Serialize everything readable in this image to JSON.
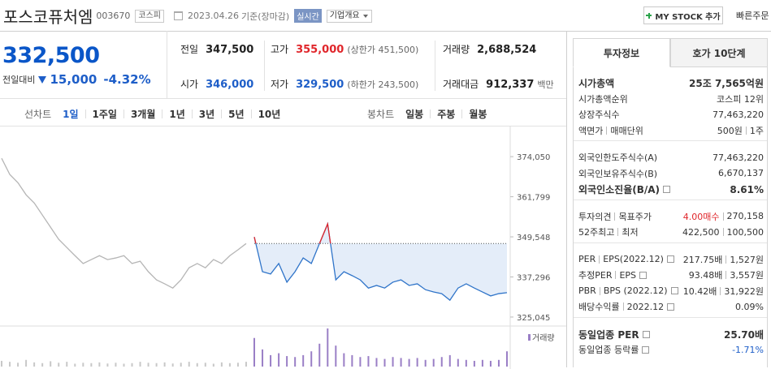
{
  "header": {
    "name": "포스코퓨처엠",
    "code": "003670",
    "market": "코스피",
    "date": "2023.04.26",
    "basis": "기준(장마감)",
    "realtime": "실시간",
    "company": "기업개요",
    "my_stock": "MY STOCK 추가",
    "quick_order": "빠른주문"
  },
  "price": {
    "current": "332,500",
    "change_label": "전일대비",
    "change": "15,000",
    "rate": "-4.32%"
  },
  "stats": [
    [
      {
        "label": "전일",
        "value": "347,500"
      },
      {
        "label": "고가",
        "value": "355,000",
        "note": "(상한가 451,500)",
        "color": "#e0262b"
      },
      {
        "label": "거래량",
        "value": "2,688,524"
      }
    ],
    [
      {
        "label": "시가",
        "value": "346,000",
        "color": "#1e5ec8"
      },
      {
        "label": "저가",
        "value": "329,500",
        "note": "(하한가 243,500)",
        "color": "#1e5ec8"
      },
      {
        "label": "거래대금",
        "value": "912,337",
        "note": "백만"
      }
    ]
  ],
  "chart_tabs": {
    "line_label": "선차트",
    "line": [
      "1일",
      "1주일",
      "3개월",
      "1년",
      "3년",
      "5년",
      "10년"
    ],
    "candle_label": "봉차트",
    "candle": [
      "일봉",
      "주봉",
      "월봉"
    ]
  },
  "chart_data": {
    "type": "line",
    "ylim": [
      322800,
      383500
    ],
    "yticks": [
      {
        "value": 325045,
        "label": "325,045"
      },
      {
        "value": 337296,
        "label": "337,296"
      },
      {
        "value": 349548,
        "label": "349,548"
      },
      {
        "value": 361799,
        "label": "361,799"
      },
      {
        "value": 374050,
        "label": "374,050"
      }
    ],
    "reference": 347500,
    "fill": "#e4edf9",
    "series": [
      {
        "color": "#b5b5b5",
        "values": [
          373550,
          368600,
          366100,
          362400,
          359900,
          356200,
          352500,
          348800,
          346300,
          343800,
          341400,
          342600,
          343800,
          342600,
          343100,
          343800,
          341400,
          342100,
          338900,
          336400,
          335200,
          333900,
          336400,
          340100,
          341400,
          340100,
          342600,
          341400,
          343800,
          345600,
          347500,
          null,
          null,
          null,
          null,
          null,
          null,
          null,
          null,
          null,
          null,
          null,
          null,
          null,
          null,
          null,
          null,
          null,
          null,
          null,
          null,
          null,
          null,
          null,
          null,
          null,
          null,
          null,
          null,
          null,
          null,
          null,
          null
        ]
      },
      {
        "color": "#2f74c9",
        "above_color": "#e0262b",
        "values": [
          null,
          null,
          null,
          null,
          null,
          null,
          null,
          null,
          null,
          null,
          null,
          null,
          null,
          null,
          null,
          null,
          null,
          null,
          null,
          null,
          null,
          null,
          null,
          null,
          null,
          null,
          null,
          null,
          null,
          null,
          null,
          349500,
          338900,
          338200,
          341400,
          335700,
          338900,
          343100,
          341400,
          347500,
          353500,
          336400,
          338900,
          337700,
          336400,
          333900,
          334700,
          333900,
          335700,
          336400,
          334700,
          335200,
          333400,
          332700,
          332200,
          330200,
          333900,
          335200,
          333900,
          332700,
          331500,
          332200,
          332500
        ]
      }
    ],
    "volume": {
      "name": "거래량",
      "series": [
        {
          "color": "#c8c8c8",
          "values": [
            30000,
            25000,
            20000,
            35000,
            22000,
            18000,
            28000,
            20000,
            25000,
            15000,
            20000,
            18000,
            22000,
            16000,
            20000,
            15000,
            18000,
            25000,
            20000,
            18000,
            22000,
            16000,
            20000,
            25000,
            18000,
            20000,
            15000,
            22000,
            18000,
            20000,
            25000,
            null,
            null,
            null,
            null,
            null,
            null,
            null,
            null,
            null,
            null,
            null,
            null,
            null,
            null,
            null,
            null,
            null,
            null,
            null,
            null,
            null,
            null,
            null,
            null,
            null,
            null,
            null,
            null,
            null,
            null,
            null,
            null
          ]
        },
        {
          "color": "#9a7fc6",
          "values": [
            null,
            null,
            null,
            null,
            null,
            null,
            null,
            null,
            null,
            null,
            null,
            null,
            null,
            null,
            null,
            null,
            null,
            null,
            null,
            null,
            null,
            null,
            null,
            null,
            null,
            null,
            null,
            null,
            null,
            null,
            null,
            150000,
            90000,
            60000,
            70000,
            55000,
            50000,
            60000,
            80000,
            120000,
            200000,
            110000,
            70000,
            60000,
            50000,
            55000,
            45000,
            40000,
            50000,
            45000,
            40000,
            45000,
            35000,
            40000,
            50000,
            60000,
            40000,
            35000,
            30000,
            35000,
            30000,
            35000,
            80000
          ]
        }
      ]
    }
  },
  "info": {
    "tabs": [
      "투자정보",
      "호가 10단계"
    ],
    "groups": [
      [
        {
          "label": [
            "시가총액"
          ],
          "value": [
            "25조 7,565억원"
          ],
          "bold": true
        },
        {
          "label": [
            "시가총액순위"
          ],
          "value": [
            "코스피 12위"
          ]
        },
        {
          "label": [
            "상장주식수"
          ],
          "value": [
            "77,463,220"
          ]
        },
        {
          "label": [
            "액면가",
            "매매단위"
          ],
          "value": [
            "500원",
            "1주"
          ]
        }
      ],
      [
        {
          "label": [
            "외국인한도주식수(A)"
          ],
          "value": [
            "77,463,220"
          ]
        },
        {
          "label": [
            "외국인보유주식수(B)"
          ],
          "value": [
            "6,670,137"
          ]
        },
        {
          "label": [
            "외국인소진율(B/A)"
          ],
          "value": [
            "8.61%"
          ],
          "bold": true,
          "help": true
        }
      ],
      [
        {
          "label": [
            "투자의견",
            "목표주가"
          ],
          "value": [
            "4.00매수",
            "270,158"
          ],
          "color": "#e0262b"
        },
        {
          "label": [
            "52주최고",
            "최저"
          ],
          "value": [
            "422,500",
            "100,500"
          ]
        }
      ],
      [
        {
          "label": [
            "PER",
            "EPS(2022.12)"
          ],
          "value": [
            "217.75배",
            "1,527원"
          ],
          "help": true
        },
        {
          "label": [
            "추정PER",
            "EPS"
          ],
          "value": [
            "93.48배",
            "3,557원"
          ],
          "help": true
        },
        {
          "label": [
            "PBR",
            "BPS (2022.12)"
          ],
          "value": [
            "10.42배",
            "31,922원"
          ],
          "help": true
        },
        {
          "label": [
            "배당수익률",
            "2022.12"
          ],
          "value": [
            "0.09%"
          ],
          "help": true
        }
      ],
      [
        {
          "label": [
            "동일업종 PER"
          ],
          "value": [
            "25.70배"
          ],
          "bold": true,
          "help": true
        },
        {
          "label": [
            "동일업종 등락률"
          ],
          "value": [
            "-1.71%"
          ],
          "color": "#1e5ec8",
          "help": true
        }
      ]
    ]
  }
}
